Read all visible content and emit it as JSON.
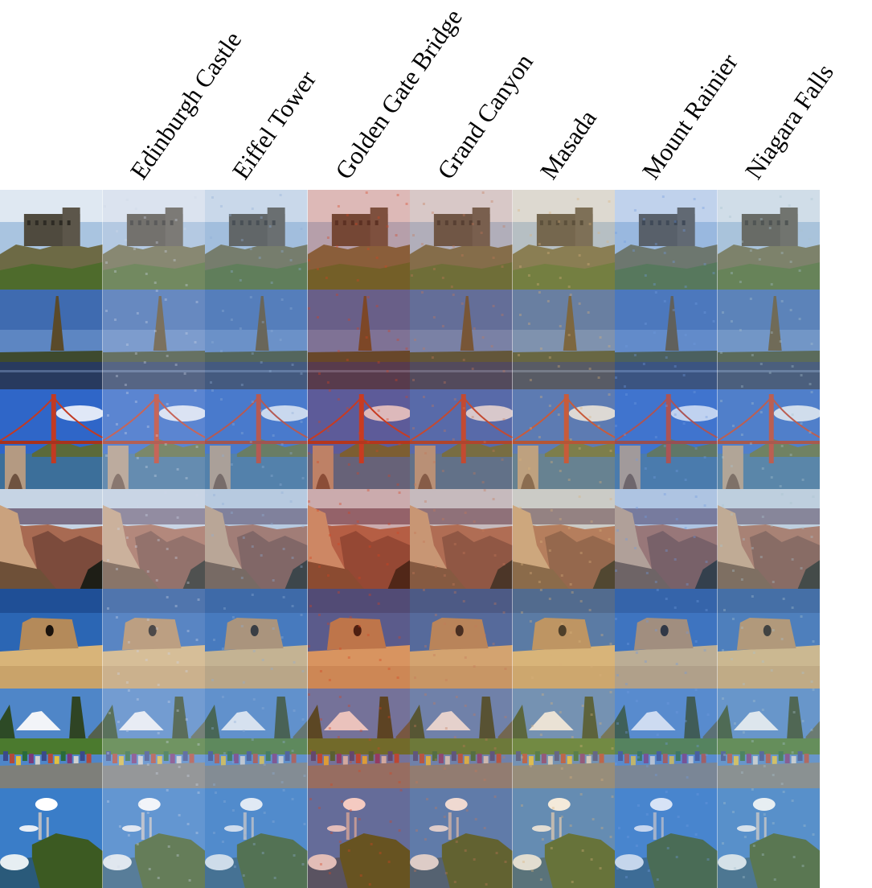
{
  "figure": {
    "column_labels": [
      "Edinburgh Castle",
      "Eiffel Tower",
      "Golden Gate Bridge",
      "Grand Canyon",
      "Masada",
      "Mount Rainier",
      "Niagara Falls"
    ],
    "row_scenes": [
      "edinburgh-castle",
      "eiffel-tower",
      "golden-gate-bridge",
      "grand-canyon",
      "masada",
      "mount-rainier",
      "niagara-falls"
    ],
    "column_tints": [
      "#ffffff",
      "#cfd8e8",
      "#8fb0d8",
      "#d8421f",
      "#c7775a",
      "#d9b27a",
      "#6f9be0",
      "#a9c3cf"
    ]
  }
}
